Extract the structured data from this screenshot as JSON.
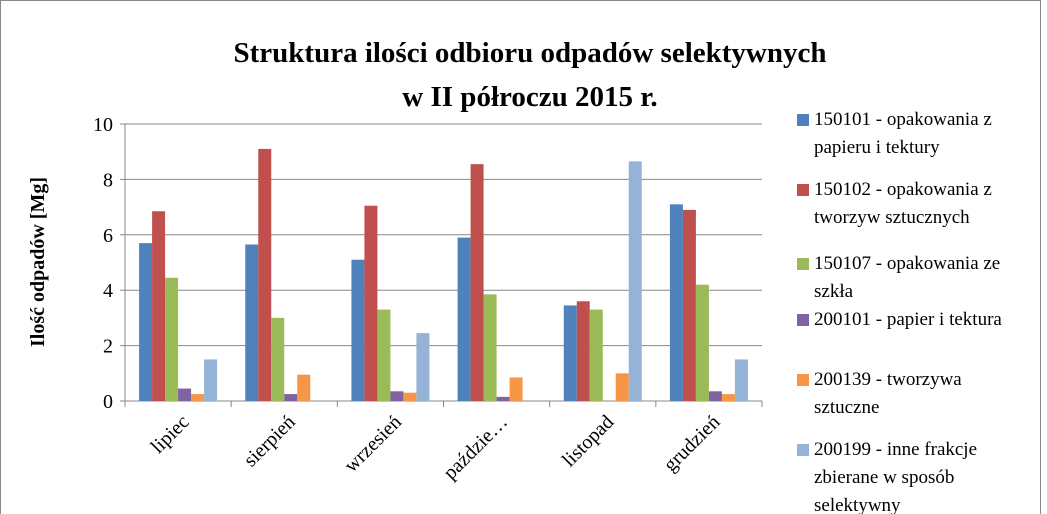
{
  "chart_data": {
    "type": "bar",
    "title": [
      "Struktura ilości odbioru odpadów selektywnych",
      "w II półroczu 2015 r."
    ],
    "y_label": "Ilość odpadów [Mg]",
    "categories": [
      "lipiec",
      "sierpień",
      "wrzesień",
      "paździe…",
      "listopad",
      "grudzień"
    ],
    "ylim": [
      0,
      10
    ],
    "yticks": [
      0,
      2,
      4,
      6,
      8,
      10
    ],
    "grid": true,
    "legend": "right",
    "series": [
      {
        "name": "150101 - opakowania z papieru i tektury",
        "color": "#4f81bd",
        "values": [
          5.7,
          5.65,
          5.1,
          5.9,
          3.45,
          7.1
        ]
      },
      {
        "name": "150102 - opakowania z tworzyw sztucznych",
        "color": "#c0504d",
        "values": [
          6.85,
          9.1,
          7.05,
          8.55,
          3.6,
          6.9
        ]
      },
      {
        "name": "150107 - opakowania ze szkła",
        "color": "#9bbb59",
        "values": [
          4.45,
          3.0,
          3.3,
          3.85,
          3.3,
          4.2
        ]
      },
      {
        "name": "200101 - papier i tektura",
        "color": "#8064a2",
        "values": [
          0.45,
          0.25,
          0.35,
          0.15,
          null,
          0.35
        ]
      },
      {
        "name": "200139 - tworzywa sztuczne",
        "color": "#f79646",
        "values": [
          0.25,
          0.95,
          0.3,
          0.85,
          1.0,
          0.25
        ]
      },
      {
        "name": "200199 - inne frakcje zbierane w sposób selektywny",
        "color": "#95b3d7",
        "values": [
          1.5,
          null,
          2.45,
          null,
          8.65,
          1.5
        ]
      }
    ]
  }
}
